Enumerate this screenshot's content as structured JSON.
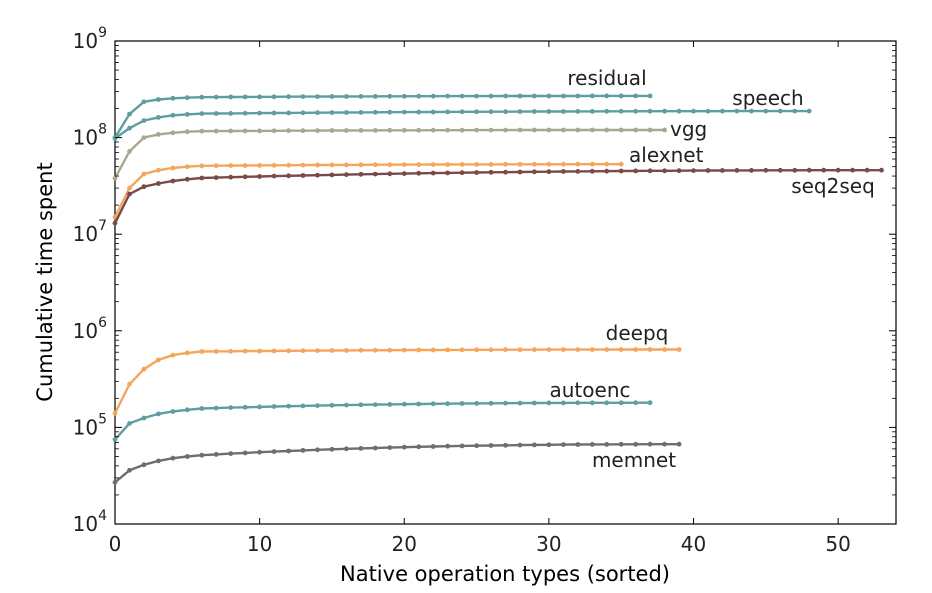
{
  "chart_data": {
    "type": "line",
    "title": "",
    "xlabel": "Native operation types (sorted)",
    "ylabel": "Cumulative time spent",
    "xlim": [
      0,
      54
    ],
    "ylim": [
      10000,
      1000000000
    ],
    "yscale": "log",
    "grid": false,
    "legend": "none",
    "xticks": [
      0,
      10,
      20,
      30,
      40,
      50
    ],
    "xtick_labels": [
      "0",
      "10",
      "20",
      "30",
      "40",
      "50"
    ],
    "yticks": [
      10000,
      100000,
      1000000,
      10000000,
      100000000,
      1000000000
    ],
    "ytick_labels": [
      {
        "base": "10",
        "exp": "4"
      },
      {
        "base": "10",
        "exp": "5"
      },
      {
        "base": "10",
        "exp": "6"
      },
      {
        "base": "10",
        "exp": "7"
      },
      {
        "base": "10",
        "exp": "8"
      },
      {
        "base": "10",
        "exp": "9"
      }
    ],
    "series": [
      {
        "name": "residual",
        "color": "#5f9ea0",
        "n_points": 38,
        "y_start": 100000000,
        "y_end": 270000000,
        "y_early": [
          100000000,
          175000000,
          235000000,
          248000000,
          255000000,
          259000000,
          262000000
        ]
      },
      {
        "name": "speech",
        "color": "#5f9ea0",
        "n_points": 49,
        "y_start": 98000000,
        "y_end": 188000000,
        "y_early": [
          98000000,
          125000000,
          150000000,
          162000000,
          170000000,
          174000000,
          177000000
        ]
      },
      {
        "name": "vgg",
        "color": "#a8a890",
        "n_points": 39,
        "y_start": 38000000,
        "y_end": 120000000,
        "y_early": [
          38000000,
          72000000,
          100000000,
          108000000,
          112000000,
          115000000,
          116500000
        ]
      },
      {
        "name": "alexnet",
        "color": "#f4a65c",
        "n_points": 36,
        "y_start": 15000000,
        "y_end": 53000000,
        "y_early": [
          15000000,
          30000000,
          42000000,
          46000000,
          48500000,
          50000000,
          51000000
        ]
      },
      {
        "name": "seq2seq",
        "color": "#7a4a4a",
        "n_points": 54,
        "y_start": 13000000,
        "y_end": 46000000,
        "y_early": [
          13000000,
          26000000,
          31000000,
          33500000,
          35500000,
          37000000,
          38200000
        ]
      },
      {
        "name": "deepq",
        "color": "#f4a65c",
        "n_points": 40,
        "y_start": 140000,
        "y_end": 640000,
        "y_early": [
          140000,
          280000,
          400000,
          500000,
          560000,
          590000,
          610000
        ]
      },
      {
        "name": "autoenc",
        "color": "#5f9ea0",
        "n_points": 38,
        "y_start": 75000,
        "y_end": 180000,
        "y_early": [
          75000,
          110000,
          125000,
          138000,
          146000,
          152000,
          157000
        ]
      },
      {
        "name": "memnet",
        "color": "#6e6e6e",
        "n_points": 40,
        "y_start": 27000,
        "y_end": 67000,
        "y_early": [
          27000,
          36000,
          41000,
          45000,
          48000,
          50000,
          51500
        ]
      }
    ]
  }
}
